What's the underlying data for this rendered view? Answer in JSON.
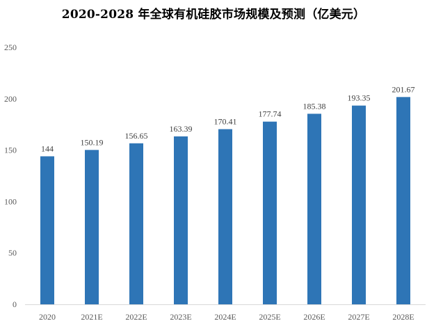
{
  "chart_data": {
    "type": "bar",
    "title": "2020-2028 年全球有机硅胶市场规模及预测（亿美元）",
    "categories": [
      "2020",
      "2021E",
      "2022E",
      "2023E",
      "2024E",
      "2025E",
      "2026E",
      "2027E",
      "2028E"
    ],
    "values": [
      144,
      150.19,
      156.65,
      163.39,
      170.41,
      177.74,
      185.38,
      193.35,
      201.67
    ],
    "data_labels": [
      "144",
      "150.19",
      "156.65",
      "163.39",
      "170.41",
      "177.74",
      "185.38",
      "193.35",
      "201.67"
    ],
    "yticks": [
      "0",
      "50",
      "100",
      "150",
      "200",
      "250"
    ],
    "ylim": [
      0,
      250
    ],
    "xlabel": "",
    "ylabel": "",
    "grid": false,
    "legend": "none",
    "bar_color": "#2E75B6",
    "axis_color": "#D9D9D9"
  }
}
